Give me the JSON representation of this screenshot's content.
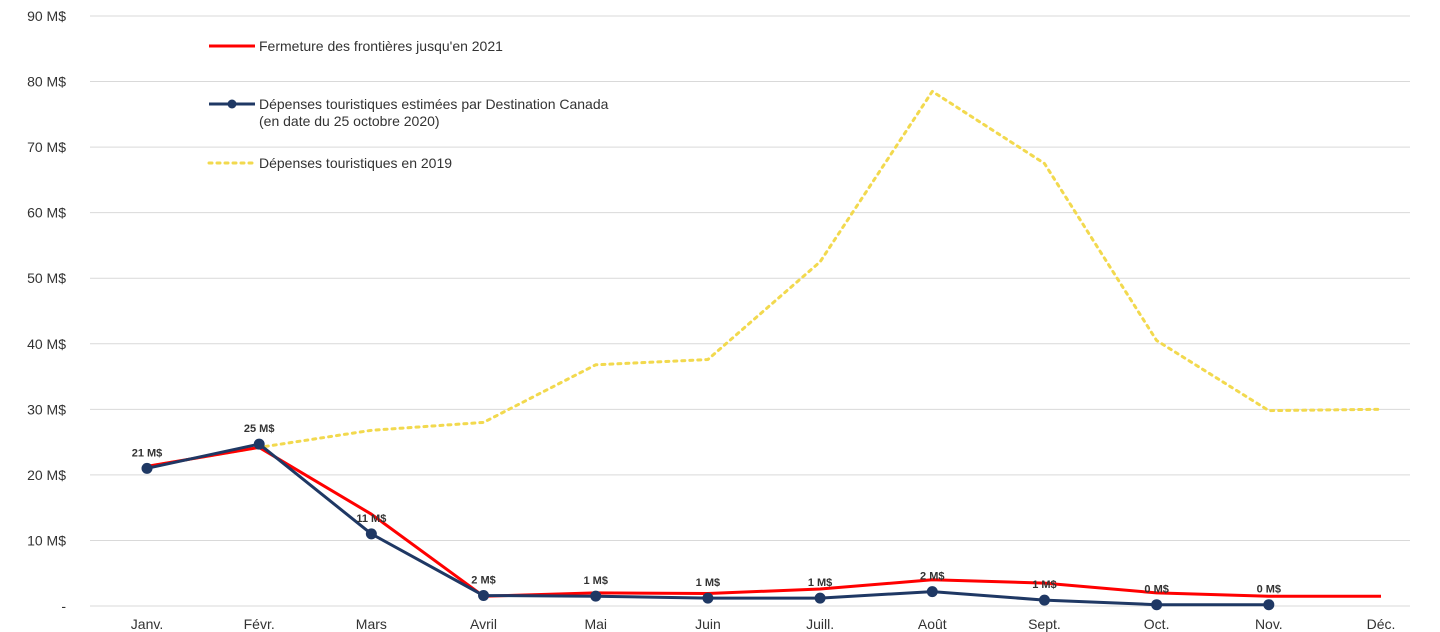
{
  "chart_data": {
    "type": "line",
    "categories": [
      "Janv.",
      "Févr.",
      "Mars",
      "Avril",
      "Mai",
      "Juin",
      "Juill.",
      "Août",
      "Sept.",
      "Oct.",
      "Nov.",
      "Déc."
    ],
    "ylim": [
      0,
      90
    ],
    "yticks": [
      {
        "value": 0,
        "label": "-"
      },
      {
        "value": 10,
        "label": "10 M$"
      },
      {
        "value": 20,
        "label": "20 M$"
      },
      {
        "value": 30,
        "label": "30 M$"
      },
      {
        "value": 40,
        "label": "40 M$"
      },
      {
        "value": 50,
        "label": "50 M$"
      },
      {
        "value": 60,
        "label": "60 M$"
      },
      {
        "value": 70,
        "label": "70 M$"
      },
      {
        "value": 80,
        "label": "80 M$"
      },
      {
        "value": 90,
        "label": "90 M$"
      }
    ],
    "grid": true,
    "legend_position": "top-left",
    "series": [
      {
        "name": "Fermeture des frontières jusqu'en 2021",
        "color": "#ff0000",
        "style": "solid",
        "values": [
          21.3,
          24.2,
          14,
          1.5,
          2,
          1.9,
          2.6,
          4,
          3.5,
          2,
          1.5,
          1.5
        ]
      },
      {
        "name": "Dépenses touristiques estimées par Destination Canada\n(en date du 25 octobre 2020)",
        "color": "#1f3864",
        "style": "solid-markers",
        "values": [
          21,
          24.7,
          11,
          1.6,
          1.5,
          1.2,
          1.2,
          2.2,
          0.9,
          0.2,
          0.2,
          null
        ],
        "data_labels": [
          "21 M$",
          "25 M$",
          "11 M$",
          "2 M$",
          "1 M$",
          "1 M$",
          "1 M$",
          "2 M$",
          "1 M$",
          "0 M$",
          "0 M$",
          null
        ]
      },
      {
        "name": "Dépenses touristiques en 2019",
        "color": "#f2d94e",
        "style": "dotted",
        "values": [
          21.3,
          24.2,
          26.8,
          28,
          36.8,
          37.6,
          52.5,
          78.5,
          67.5,
          40.5,
          29.8,
          30
        ]
      }
    ]
  }
}
